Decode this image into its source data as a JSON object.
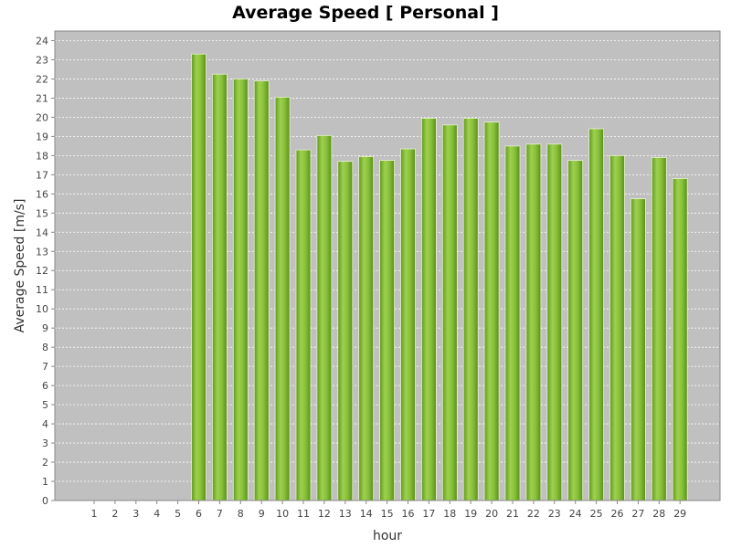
{
  "chart_data": {
    "type": "bar",
    "title": "Average Speed [ Personal ]",
    "xlabel": "hour",
    "ylabel": "Average Speed [m/s]",
    "categories": [
      "1",
      "2",
      "3",
      "4",
      "5",
      "6",
      "7",
      "8",
      "9",
      "10",
      "11",
      "12",
      "13",
      "14",
      "15",
      "16",
      "17",
      "18",
      "19",
      "20",
      "21",
      "22",
      "23",
      "24",
      "25",
      "26",
      "27",
      "28",
      "29"
    ],
    "values": [
      0,
      0,
      0,
      0,
      0,
      23.3,
      22.25,
      22.0,
      21.9,
      21.05,
      18.3,
      19.05,
      17.7,
      17.95,
      17.75,
      18.35,
      19.95,
      19.6,
      19.95,
      19.75,
      18.5,
      18.6,
      18.6,
      17.75,
      19.4,
      18.0,
      15.75,
      17.9,
      16.8
    ],
    "ylim": [
      0,
      24.5
    ],
    "yticks": [
      0,
      1,
      2,
      3,
      4,
      5,
      6,
      7,
      8,
      9,
      10,
      11,
      12,
      13,
      14,
      15,
      16,
      17,
      18,
      19,
      20,
      21,
      22,
      23,
      24
    ],
    "grid": true,
    "legend": "none",
    "colors": {
      "plot_background": "#c0c0c0",
      "bar": "#8cc63f",
      "bar_dark": "#5a8f17",
      "bar_light": "#b7e07a",
      "gridline": "#ffffff"
    }
  }
}
